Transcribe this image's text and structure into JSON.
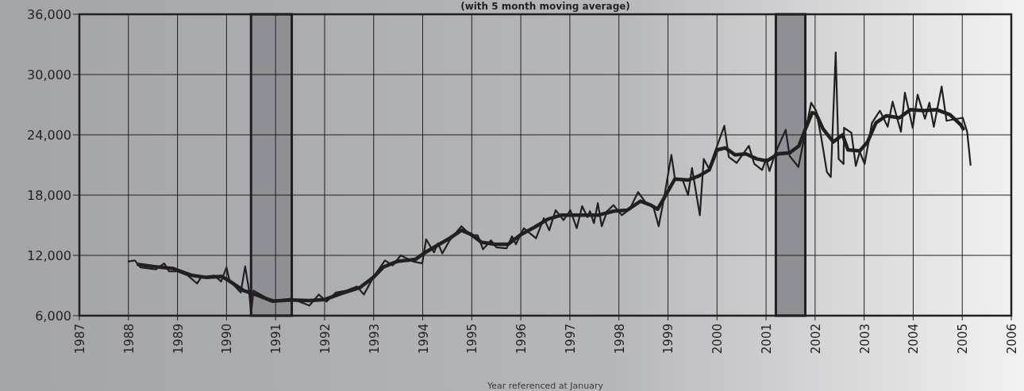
{
  "chart_data": {
    "type": "line",
    "title": "(with 5 month moving average)",
    "xlabel": "Year referenced at January",
    "xlim": [
      1987,
      2006
    ],
    "xticks": [
      1987,
      1988,
      1989,
      1990,
      1991,
      1992,
      1993,
      1994,
      1995,
      1996,
      1997,
      1998,
      1999,
      2000,
      2001,
      2002,
      2003,
      2004,
      2005,
      2006
    ],
    "ylim": [
      6000,
      36000
    ],
    "yticks": [
      {
        "value": 6000,
        "label": "6,000"
      },
      {
        "value": 12000,
        "label": "12,000"
      },
      {
        "value": 18000,
        "label": "18,000"
      },
      {
        "value": 24000,
        "label": "24,000"
      },
      {
        "value": 30000,
        "label": "30,000"
      },
      {
        "value": 36000,
        "label": "36,000"
      }
    ],
    "grid": true,
    "line_style": "solid",
    "marker": "none",
    "bands": [
      {
        "axis": "x",
        "from": 1990.5,
        "to": 1991.33,
        "color": "#8f9095"
      },
      {
        "axis": "x",
        "from": 2001.2,
        "to": 2001.8,
        "color": "#8f9095"
      }
    ],
    "series": [
      {
        "color": "#231f20",
        "x": [
          1988.0,
          1988.13,
          1988.25,
          1988.56,
          1988.73,
          1988.83,
          1989.0,
          1989.21,
          1989.4,
          1989.48,
          1989.75,
          1989.89,
          1990.0,
          1990.06,
          1990.29,
          1990.38,
          1990.46,
          1990.5,
          1990.55,
          1990.8,
          1990.99,
          1991.31,
          1991.48,
          1991.69,
          1991.88,
          1992.04,
          1992.23,
          1992.45,
          1992.66,
          1992.8,
          1992.99,
          1993.23,
          1993.39,
          1993.55,
          1993.8,
          1993.99,
          1994.07,
          1994.23,
          1994.31,
          1994.4,
          1994.55,
          1994.79,
          1994.98,
          1995.12,
          1995.23,
          1995.39,
          1995.5,
          1995.71,
          1995.82,
          1995.9,
          1996.06,
          1996.31,
          1996.47,
          1996.58,
          1996.71,
          1996.87,
          1997.01,
          1997.14,
          1997.25,
          1997.36,
          1997.41,
          1997.49,
          1997.57,
          1997.65,
          1997.76,
          1997.89,
          1998.06,
          1998.22,
          1998.39,
          1998.54,
          1998.7,
          1998.81,
          1998.92,
          1999.07,
          1999.14,
          1999.3,
          1999.41,
          1999.49,
          1999.65,
          1999.73,
          1999.84,
          1999.95,
          2000.15,
          2000.24,
          2000.4,
          2000.65,
          2000.76,
          2000.92,
          2001.0,
          2001.07,
          2001.19,
          2001.4,
          2001.48,
          2001.66,
          2001.92,
          2002.02,
          2002.13,
          2002.24,
          2002.32,
          2002.42,
          2002.48,
          2002.58,
          2002.59,
          2002.74,
          2002.83,
          2002.91,
          2003.01,
          2003.16,
          2003.32,
          2003.48,
          2003.58,
          2003.75,
          2003.83,
          2003.99,
          2004.09,
          2004.24,
          2004.33,
          2004.42,
          2004.58,
          2004.68,
          2005.01,
          2005.1,
          2005.17
        ],
        "values": [
          11400,
          11500,
          10800,
          10600,
          11200,
          10400,
          10400,
          10000,
          9200,
          9800,
          10000,
          9400,
          10800,
          9500,
          8300,
          10900,
          8500,
          6200,
          8500,
          7800,
          7500,
          7700,
          7400,
          7000,
          8100,
          7400,
          8300,
          8500,
          8900,
          8100,
          9800,
          11500,
          11000,
          12000,
          11400,
          11200,
          13600,
          12300,
          13200,
          12200,
          13500,
          14900,
          14000,
          14000,
          12600,
          13500,
          12800,
          12700,
          13900,
          13100,
          14700,
          13700,
          15700,
          14500,
          16500,
          15500,
          16500,
          14700,
          16900,
          15800,
          16400,
          15200,
          17200,
          14900,
          16400,
          17000,
          16000,
          16600,
          18300,
          17300,
          16900,
          14900,
          17700,
          22000,
          19700,
          19500,
          18000,
          20700,
          16000,
          21600,
          20600,
          22200,
          24900,
          21800,
          21200,
          22900,
          21100,
          20500,
          21600,
          20400,
          22200,
          24500,
          21900,
          20800,
          27200,
          26400,
          23600,
          20300,
          19800,
          32200,
          21600,
          21100,
          24700,
          24200,
          20900,
          22300,
          21100,
          25200,
          26400,
          24800,
          27300,
          24300,
          28200,
          24700,
          28000,
          25600,
          27200,
          24800,
          28800,
          25400,
          25700,
          24300,
          21000
        ]
      },
      {
        "color": "#231f20",
        "x": [
          1988.2,
          1988.5,
          1988.9,
          1989.3,
          1989.6,
          1989.9,
          1990.06,
          1990.35,
          1990.65,
          1990.93,
          1991.31,
          1991.69,
          1992.0,
          1992.34,
          1992.72,
          1992.99,
          1993.2,
          1993.48,
          1993.85,
          1994.02,
          1994.28,
          1994.55,
          1994.79,
          1994.98,
          1995.2,
          1995.47,
          1995.74,
          1996.01,
          1996.28,
          1996.55,
          1996.82,
          1997.25,
          1997.57,
          1997.89,
          1998.17,
          1998.44,
          1998.65,
          1998.79,
          1998.92,
          1999.14,
          1999.41,
          1999.63,
          1999.84,
          2000.0,
          2000.17,
          2000.37,
          2000.59,
          2000.81,
          2001.02,
          2001.24,
          2001.48,
          2001.67,
          2001.78,
          2001.94,
          2002.02,
          2002.16,
          2002.37,
          2002.56,
          2002.67,
          2002.91,
          2003.07,
          2003.24,
          2003.45,
          2003.72,
          2003.94,
          2004.21,
          2004.48,
          2004.75,
          2004.97,
          2005.02
        ],
        "values": [
          11100,
          10900,
          10700,
          10000,
          9800,
          9900,
          9450,
          8500,
          8000,
          7450,
          7550,
          7500,
          7600,
          8200,
          8800,
          9800,
          10850,
          11400,
          11600,
          12200,
          12950,
          13700,
          14500,
          14100,
          13300,
          13100,
          13100,
          14100,
          14800,
          15600,
          16000,
          16000,
          16000,
          16400,
          16500,
          17400,
          17000,
          16600,
          17700,
          19600,
          19500,
          19900,
          20500,
          22500,
          22700,
          22000,
          22100,
          21600,
          21400,
          22100,
          22200,
          22900,
          24300,
          26200,
          26100,
          24600,
          23300,
          24000,
          22500,
          22400,
          23300,
          25200,
          25900,
          25700,
          26500,
          26400,
          26500,
          26000,
          25000,
          24600
        ]
      }
    ]
  }
}
